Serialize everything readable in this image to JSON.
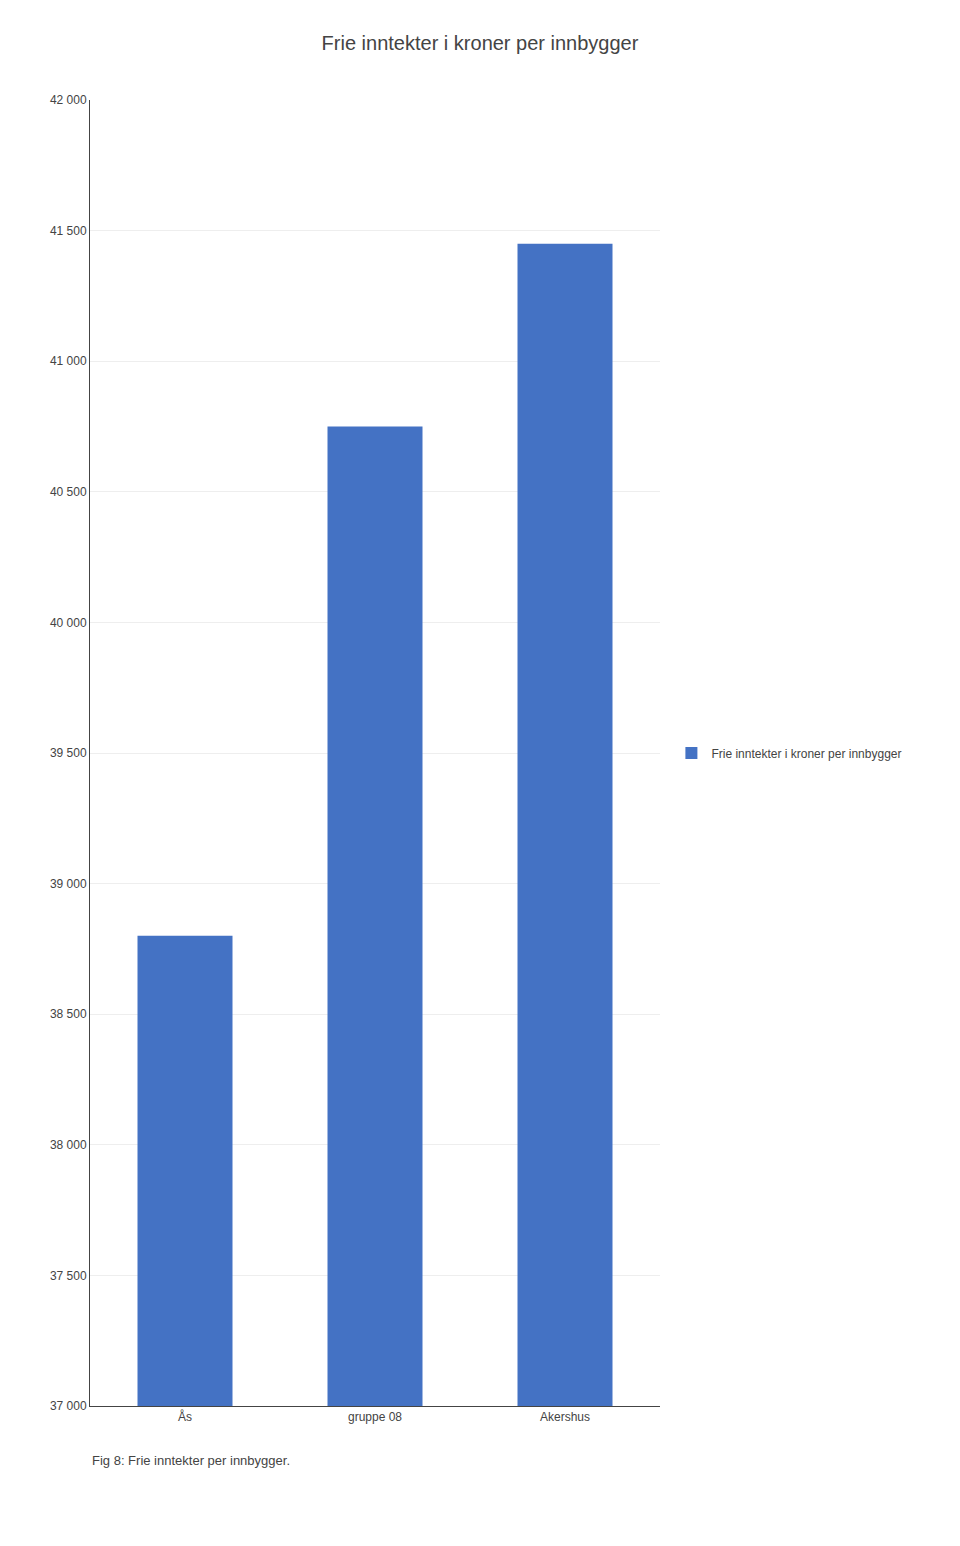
{
  "chart_data": {
    "type": "bar",
    "title": "Frie inntekter i kroner per innbygger",
    "categories": [
      "Ås",
      "gruppe 08",
      "Akershus"
    ],
    "series": [
      {
        "name": "Frie inntekter i kroner per innbygger",
        "color": "#4472C4",
        "values": [
          38800,
          40750,
          41450
        ]
      }
    ],
    "ylim": [
      37000,
      42000
    ],
    "yticks": [
      {
        "value": 37000,
        "label": "37 000"
      },
      {
        "value": 37500,
        "label": "37 500"
      },
      {
        "value": 38000,
        "label": "38 000"
      },
      {
        "value": 38500,
        "label": "38 500"
      },
      {
        "value": 39000,
        "label": "39 000"
      },
      {
        "value": 39500,
        "label": "39 500"
      },
      {
        "value": 40000,
        "label": "40 000"
      },
      {
        "value": 40500,
        "label": "40 500"
      },
      {
        "value": 41000,
        "label": "41 000"
      },
      {
        "value": 41500,
        "label": "41 500"
      },
      {
        "value": 42000,
        "label": "42 000"
      }
    ],
    "grid": true,
    "legend": "right",
    "annotations": [
      "Fig 8: Frie inntekter per innbygger."
    ]
  }
}
